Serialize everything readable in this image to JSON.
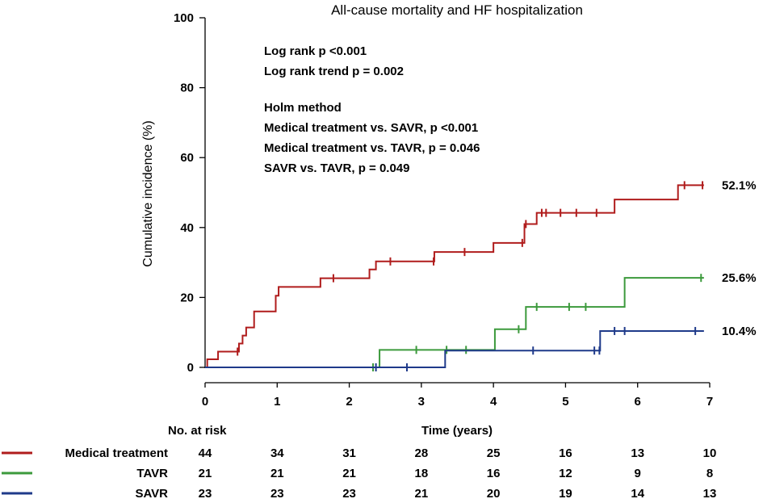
{
  "chart_data": {
    "type": "line",
    "subtype": "kaplan-meier cumulative incidence",
    "title": "All-cause mortality and HF hospitalization",
    "xlabel": "Time (years)",
    "ylabel": "Cumulative incidence (%)",
    "xlim": [
      0,
      7
    ],
    "ylim": [
      0,
      100
    ],
    "xticks": [
      0,
      1,
      2,
      3,
      4,
      5,
      6,
      7
    ],
    "yticks": [
      0,
      20,
      40,
      60,
      80,
      100
    ],
    "annotations": [
      "Log rank p <0.001",
      "Log rank trend p = 0.002",
      "Holm method",
      "Medical treatment vs. SAVR, p <0.001",
      "Medical treatment vs. TAVR, p = 0.046",
      "SAVR vs. TAVR, p = 0.049"
    ],
    "series": [
      {
        "name": "Medical treatment",
        "color": "#b01c1c",
        "end_label": "52.1%",
        "steps": [
          [
            0,
            0
          ],
          [
            0.03,
            2.3
          ],
          [
            0.18,
            4.5
          ],
          [
            0.47,
            6.8
          ],
          [
            0.52,
            9.1
          ],
          [
            0.57,
            11.4
          ],
          [
            0.68,
            16.0
          ],
          [
            0.98,
            20.5
          ],
          [
            1.02,
            23.0
          ],
          [
            1.6,
            25.5
          ],
          [
            2.28,
            28.0
          ],
          [
            2.37,
            30.3
          ],
          [
            3.18,
            33.0
          ],
          [
            4.0,
            35.6
          ],
          [
            4.43,
            41.0
          ],
          [
            4.6,
            44.2
          ],
          [
            5.68,
            48.0
          ],
          [
            6.56,
            52.1
          ],
          [
            6.92,
            52.1
          ]
        ],
        "censored": [
          [
            0.45,
            4.5
          ],
          [
            1.78,
            25.5
          ],
          [
            2.57,
            30.3
          ],
          [
            3.17,
            30.3
          ],
          [
            3.6,
            33.0
          ],
          [
            4.4,
            35.6
          ],
          [
            4.45,
            41.0
          ],
          [
            4.67,
            44.2
          ],
          [
            4.73,
            44.2
          ],
          [
            4.93,
            44.2
          ],
          [
            5.15,
            44.2
          ],
          [
            5.43,
            44.2
          ],
          [
            6.65,
            52.1
          ],
          [
            6.9,
            52.1
          ]
        ]
      },
      {
        "name": "TAVR",
        "color": "#3c9a3c",
        "end_label": "25.6%",
        "steps": [
          [
            0,
            0
          ],
          [
            2.42,
            5.0
          ],
          [
            4.02,
            10.9
          ],
          [
            4.45,
            17.3
          ],
          [
            5.82,
            25.6
          ],
          [
            6.92,
            25.6
          ]
        ],
        "censored": [
          [
            2.33,
            0
          ],
          [
            2.93,
            5.0
          ],
          [
            3.35,
            5.0
          ],
          [
            3.62,
            5.0
          ],
          [
            4.35,
            10.9
          ],
          [
            4.6,
            17.3
          ],
          [
            5.05,
            17.3
          ],
          [
            5.28,
            17.3
          ],
          [
            6.88,
            25.6
          ]
        ]
      },
      {
        "name": "SAVR",
        "color": "#1f3a8a",
        "end_label": "10.4%",
        "steps": [
          [
            0,
            0
          ],
          [
            3.33,
            4.8
          ],
          [
            5.48,
            10.4
          ],
          [
            6.92,
            10.4
          ]
        ],
        "censored": [
          [
            2.37,
            0
          ],
          [
            2.8,
            0
          ],
          [
            4.55,
            4.8
          ],
          [
            5.4,
            4.8
          ],
          [
            5.47,
            4.8
          ],
          [
            5.68,
            10.4
          ],
          [
            5.82,
            10.4
          ],
          [
            6.8,
            10.4
          ]
        ]
      }
    ],
    "risk_table": {
      "header": "No. at risk",
      "times": [
        0,
        1,
        2,
        3,
        4,
        5,
        6,
        7
      ],
      "rows": [
        {
          "label": "Medical treatment",
          "color": "#b01c1c",
          "values": [
            "44",
            "34",
            "31",
            "28",
            "25",
            "16",
            "13",
            "10"
          ]
        },
        {
          "label": "TAVR",
          "color": "#3c9a3c",
          "values": [
            "21",
            "21",
            "21",
            "18",
            "16",
            "12",
            "9",
            "8"
          ]
        },
        {
          "label": "SAVR",
          "color": "#1f3a8a",
          "values": [
            "23",
            "23",
            "23",
            "21",
            "20",
            "19",
            "14",
            "13"
          ]
        }
      ]
    }
  }
}
